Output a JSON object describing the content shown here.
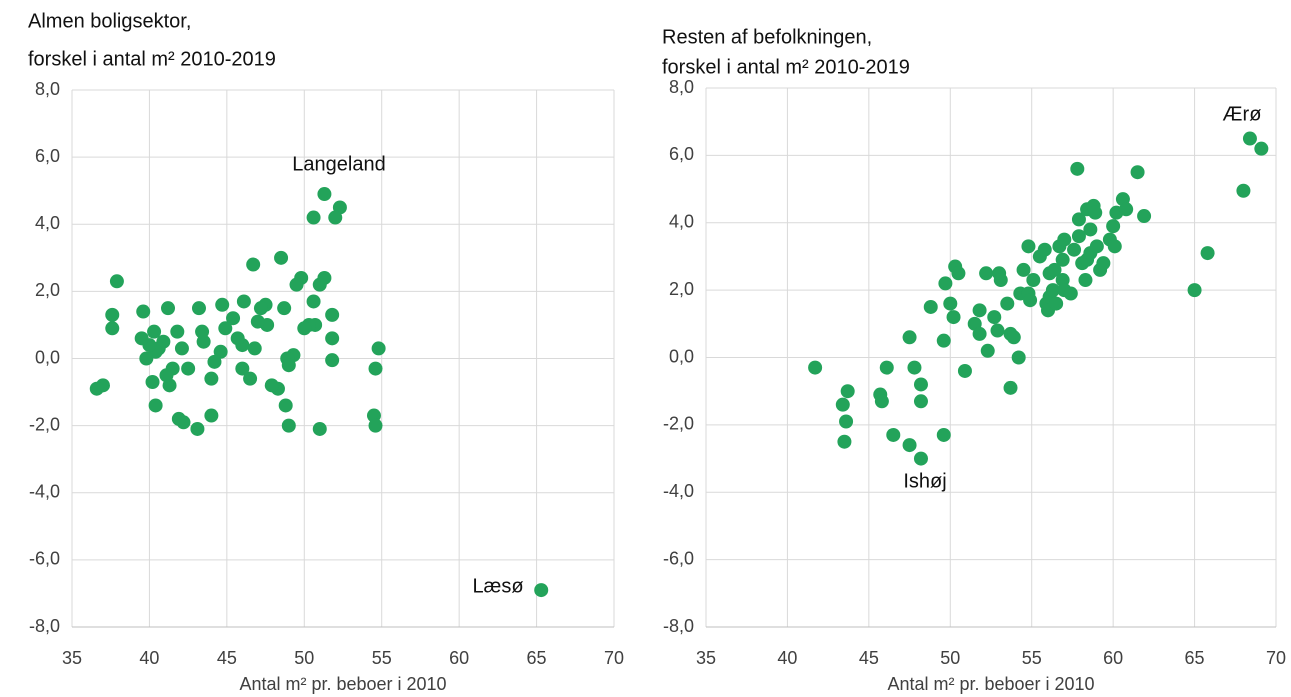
{
  "chart_data": [
    {
      "type": "scatter",
      "title": "Almen boligsektor,",
      "subtitle": "forskel i antal m² 2010-2019",
      "xlabel": "Antal m² pr. beboer i 2010",
      "color": "#23a35a",
      "grid": true,
      "xlim": [
        35,
        70
      ],
      "xticks": [
        35,
        40,
        45,
        50,
        55,
        60,
        65,
        70
      ],
      "ylim": [
        -8,
        8
      ],
      "yticks": [
        {
          "value": -8,
          "label": "-8,0"
        },
        {
          "value": -6,
          "label": "-6,0"
        },
        {
          "value": -4,
          "label": "-4,0"
        },
        {
          "value": -2,
          "label": "-2,0"
        },
        {
          "value": 0,
          "label": "0,0"
        },
        {
          "value": 2,
          "label": "2,0"
        },
        {
          "value": 4,
          "label": "4,0"
        },
        {
          "value": 6,
          "label": "6,0"
        },
        {
          "value": 8,
          "label": "8,0"
        }
      ],
      "annotations": [
        "Langeland",
        "Læsø"
      ],
      "x": [
        51.3,
        52.3,
        50.6,
        52.0,
        54.5,
        54.6,
        54.6,
        54.8,
        51.0,
        49.0,
        48.8,
        51.8,
        51.8,
        51.8,
        51.3,
        51.0,
        50.6,
        50.7,
        50.3,
        50.0,
        49.8,
        49.5,
        49.3,
        48.9,
        49.0,
        48.7,
        48.5,
        48.3,
        47.9,
        47.6,
        47.5,
        47.2,
        47.0,
        46.8,
        46.7,
        46.5,
        46.1,
        46.0,
        46.0,
        45.7,
        45.4,
        44.9,
        44.7,
        44.6,
        44.2,
        44.0,
        44.0,
        43.5,
        43.4,
        43.2,
        43.1,
        42.5,
        42.2,
        41.9,
        42.1,
        41.8,
        41.5,
        41.3,
        41.2,
        41.1,
        40.9,
        40.6,
        40.4,
        40.4,
        40.3,
        40.2,
        40.0,
        39.8,
        39.6,
        39.5,
        37.9,
        37.6,
        37.6,
        37.0,
        36.6,
        65.3
      ],
      "values": [
        4.9,
        4.5,
        4.2,
        4.2,
        -1.7,
        -2.0,
        -0.3,
        0.3,
        -2.1,
        -2.0,
        -1.4,
        0.6,
        -0.05,
        1.3,
        2.4,
        2.2,
        1.7,
        1.0,
        1.0,
        0.9,
        2.4,
        2.2,
        0.1,
        0.0,
        -0.2,
        1.5,
        3.0,
        -0.9,
        -0.8,
        1.0,
        1.6,
        1.5,
        1.1,
        0.3,
        2.8,
        -0.6,
        1.7,
        0.4,
        -0.3,
        0.6,
        1.2,
        0.9,
        1.6,
        0.2,
        -0.1,
        -0.6,
        -1.7,
        0.5,
        0.8,
        1.5,
        -2.1,
        -0.3,
        -1.9,
        -1.8,
        0.3,
        0.8,
        -0.3,
        -0.8,
        1.5,
        -0.5,
        0.5,
        0.3,
        0.2,
        -1.4,
        0.8,
        -0.7,
        0.4,
        0.0,
        1.4,
        0.6,
        2.3,
        1.3,
        0.9,
        -0.8,
        -0.9,
        -6.9
      ]
    },
    {
      "type": "scatter",
      "title": "Resten af befolkningen,",
      "subtitle": "forskel i antal m² 2010-2019",
      "xlabel": "Antal m² pr. beboer i 2010",
      "color": "#23a35a",
      "grid": true,
      "xlim": [
        35,
        70
      ],
      "xticks": [
        35,
        40,
        45,
        50,
        55,
        60,
        65,
        70
      ],
      "ylim": [
        -8,
        8
      ],
      "yticks": [
        {
          "value": -8,
          "label": "-8,0"
        },
        {
          "value": -6,
          "label": "-6,0"
        },
        {
          "value": -4,
          "label": "-4,0"
        },
        {
          "value": -2,
          "label": "-2,0"
        },
        {
          "value": 0,
          "label": "0,0"
        },
        {
          "value": 2,
          "label": "2,0"
        },
        {
          "value": 4,
          "label": "4,0"
        },
        {
          "value": 6,
          "label": "6,0"
        },
        {
          "value": 8,
          "label": "8,0"
        }
      ],
      "annotations": [
        "Ærø",
        "Ishøj"
      ],
      "x": [
        41.7,
        43.7,
        43.4,
        43.6,
        43.5,
        45.7,
        45.8,
        46.1,
        46.5,
        47.5,
        47.5,
        47.8,
        48.2,
        48.2,
        48.2,
        48.8,
        49.6,
        49.6,
        49.7,
        50.0,
        50.2,
        50.3,
        50.5,
        50.9,
        51.5,
        51.8,
        51.8,
        52.2,
        52.3,
        52.7,
        52.9,
        53.0,
        53.1,
        53.5,
        53.7,
        53.9,
        53.7,
        54.2,
        54.3,
        54.5,
        54.8,
        54.8,
        54.9,
        55.1,
        55.5,
        55.8,
        55.9,
        56.0,
        56.1,
        56.1,
        56.3,
        56.4,
        56.5,
        56.7,
        56.9,
        57.0,
        56.9,
        57.0,
        57.4,
        57.6,
        57.8,
        57.9,
        57.9,
        58.1,
        58.3,
        58.4,
        58.4,
        58.6,
        58.6,
        58.8,
        58.9,
        59.0,
        59.2,
        59.4,
        59.8,
        60.0,
        60.1,
        60.2,
        60.6,
        60.8,
        61.5,
        61.9,
        65.0,
        65.8,
        68.0,
        68.4,
        69.1
      ],
      "values": [
        -0.3,
        -1.0,
        -1.4,
        -1.9,
        -2.5,
        -1.1,
        -1.3,
        -0.3,
        -2.3,
        0.6,
        -2.6,
        -0.3,
        -0.8,
        -1.3,
        -3.0,
        1.5,
        0.5,
        -2.3,
        2.2,
        1.6,
        1.2,
        2.7,
        2.5,
        -0.4,
        1.0,
        1.4,
        0.7,
        2.5,
        0.2,
        1.2,
        0.8,
        2.5,
        2.3,
        1.6,
        0.7,
        0.6,
        -0.9,
        0.0,
        1.9,
        2.6,
        1.9,
        3.3,
        1.7,
        2.3,
        3.0,
        3.2,
        1.6,
        1.4,
        2.5,
        1.8,
        2.0,
        2.6,
        1.6,
        3.3,
        2.3,
        2.0,
        2.9,
        3.5,
        1.9,
        3.2,
        5.6,
        4.1,
        3.6,
        2.8,
        2.3,
        4.4,
        2.9,
        3.1,
        3.8,
        4.5,
        4.3,
        3.3,
        2.6,
        2.8,
        3.5,
        3.9,
        3.3,
        4.3,
        4.7,
        4.4,
        5.5,
        4.2,
        2.0,
        3.1,
        4.95,
        6.5,
        6.2
      ]
    }
  ]
}
